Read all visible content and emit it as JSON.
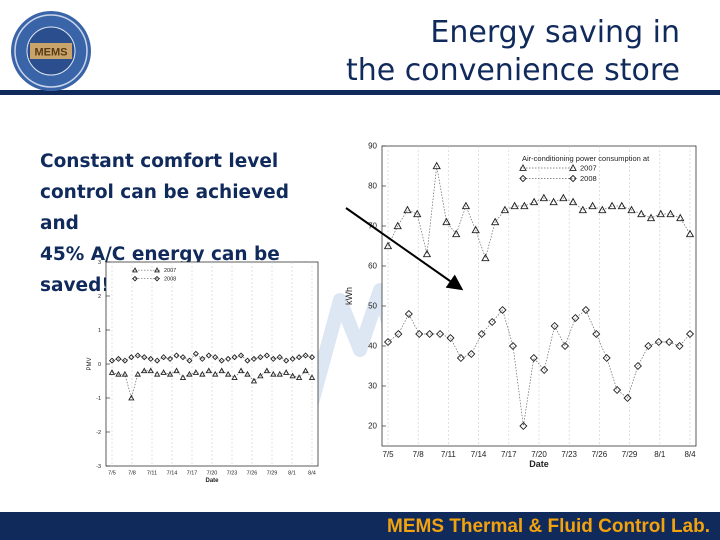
{
  "header": {
    "title_line1": "Energy saving in",
    "title_line2": "the convenience store",
    "logo_text": "MEMS"
  },
  "body": {
    "line1": "Constant comfort level",
    "line2": "control can be achieved and",
    "line3": "45% A/C energy can be",
    "line4": "saved!!"
  },
  "footer": {
    "text": "MEMS Thermal & Fluid Control Lab."
  },
  "colors": {
    "navy": "#102a5c",
    "footer_text": "#f2a20c"
  },
  "chart_data": [
    {
      "type": "scatter",
      "title": "",
      "xlabel": "Date",
      "ylabel": "PMV",
      "ylim": [
        -3,
        3
      ],
      "yticks": [
        -3,
        -2,
        -1,
        0,
        1,
        2,
        3
      ],
      "xtick_labels": [
        "7/5",
        "7/8",
        "7/11",
        "7/14",
        "7/17",
        "7/20",
        "7/23",
        "7/26",
        "7/29",
        "8/1",
        "8/4"
      ],
      "legend_position": "top-left",
      "series": [
        {
          "name": "2007",
          "marker": "triangle",
          "values": [
            -0.25,
            -0.3,
            -0.3,
            -1.0,
            -0.3,
            -0.2,
            -0.2,
            -0.3,
            -0.25,
            -0.3,
            -0.2,
            -0.4,
            -0.3,
            -0.25,
            -0.3,
            -0.2,
            -0.3,
            -0.2,
            -0.3,
            -0.4,
            -0.2,
            -0.3,
            -0.5,
            -0.35,
            -0.2,
            -0.3,
            -0.3,
            -0.25,
            -0.35,
            -0.4,
            -0.2,
            -0.4
          ]
        },
        {
          "name": "2008",
          "marker": "diamond",
          "values": [
            0.1,
            0.15,
            0.1,
            0.2,
            0.25,
            0.2,
            0.15,
            0.1,
            0.2,
            0.15,
            0.25,
            0.2,
            0.1,
            0.3,
            0.15,
            0.25,
            0.2,
            0.1,
            0.15,
            0.2,
            0.25,
            0.1,
            0.15,
            0.2,
            0.25,
            0.15,
            0.2,
            0.1,
            0.15,
            0.2,
            0.25,
            0.2
          ]
        }
      ]
    },
    {
      "type": "line",
      "title": "Air-conditioning power consumption at",
      "xlabel": "Date",
      "ylabel": "kWh",
      "ylim": [
        15,
        90
      ],
      "yticks": [
        20,
        30,
        40,
        50,
        60,
        70,
        80,
        90
      ],
      "xtick_labels": [
        "7/5",
        "7/8",
        "7/11",
        "7/14",
        "7/17",
        "7/20",
        "7/23",
        "7/26",
        "7/29",
        "8/1",
        "8/4"
      ],
      "legend_position": "top-right",
      "series": [
        {
          "name": "2007",
          "marker": "triangle",
          "values": [
            65,
            70,
            74,
            73,
            63,
            85,
            71,
            68,
            75,
            69,
            62,
            71,
            74,
            75,
            75,
            76,
            77,
            76,
            77,
            76,
            74,
            75,
            74,
            75,
            75,
            74,
            73,
            72,
            73,
            73,
            72,
            68
          ]
        },
        {
          "name": "2008",
          "marker": "diamond",
          "values": [
            41,
            43,
            48,
            43,
            43,
            43,
            42,
            37,
            38,
            43,
            46,
            49,
            40,
            20,
            37,
            34,
            45,
            40,
            47,
            49,
            43,
            37,
            29,
            27,
            35,
            40,
            41,
            41,
            40,
            43
          ]
        }
      ]
    }
  ]
}
